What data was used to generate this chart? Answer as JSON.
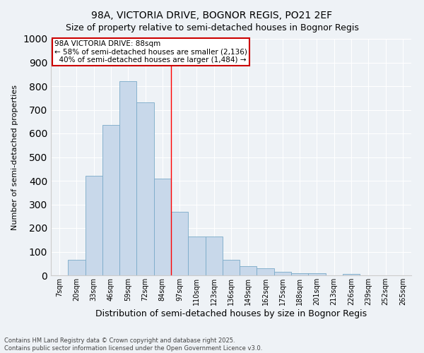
{
  "title1": "98A, VICTORIA DRIVE, BOGNOR REGIS, PO21 2EF",
  "title2": "Size of property relative to semi-detached houses in Bognor Regis",
  "xlabel": "Distribution of semi-detached houses by size in Bognor Regis",
  "ylabel": "Number of semi-detached properties",
  "categories": [
    "7sqm",
    "20sqm",
    "33sqm",
    "46sqm",
    "59sqm",
    "72sqm",
    "84sqm",
    "97sqm",
    "110sqm",
    "123sqm",
    "136sqm",
    "149sqm",
    "162sqm",
    "175sqm",
    "188sqm",
    "201sqm",
    "213sqm",
    "226sqm",
    "239sqm",
    "252sqm",
    "265sqm"
  ],
  "values": [
    0,
    65,
    420,
    635,
    820,
    730,
    410,
    270,
    165,
    165,
    65,
    40,
    30,
    15,
    10,
    10,
    0,
    5,
    0,
    0,
    0
  ],
  "bar_color": "#c8d8ea",
  "bar_edge_color": "#7aaac8",
  "pct_smaller": 58,
  "pct_larger": 40,
  "count_smaller": 2136,
  "count_larger": 1484,
  "prop_bar_index": 6.5,
  "ylim": [
    0,
    1000
  ],
  "yticks": [
    0,
    100,
    200,
    300,
    400,
    500,
    600,
    700,
    800,
    900,
    1000
  ],
  "footnote1": "Contains HM Land Registry data © Crown copyright and database right 2025.",
  "footnote2": "Contains public sector information licensed under the Open Government Licence v3.0.",
  "bg_color": "#eef2f6",
  "grid_color": "#ffffff",
  "title1_fontsize": 10,
  "title2_fontsize": 9,
  "ylabel_fontsize": 8,
  "xlabel_fontsize": 9,
  "tick_fontsize": 7,
  "annot_fontsize": 7.5,
  "footnote_fontsize": 6
}
